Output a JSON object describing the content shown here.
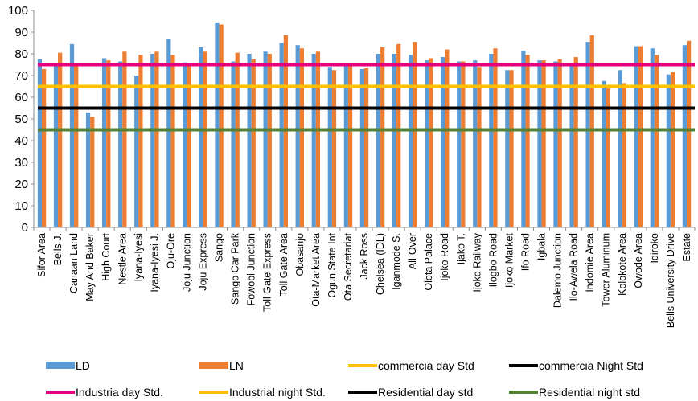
{
  "chart_data": {
    "type": "bar",
    "categories": [
      "Sifor Area",
      "Bells J.",
      "Canaan Land",
      "May And Baker",
      "High Court",
      "Nestle Area",
      "Iyana-Iyesi",
      "Iyana-Iyesi J.",
      "Oju-Ore",
      "Joju Junction",
      "Joju Express",
      "Sango",
      "Sango Car Park",
      "Fowobi Junction",
      "Toll Gate Express",
      "Toll Gate Area",
      "Obasanjo",
      "Ota-Market Area",
      "Ogun State Int",
      "Ota  Secretariat",
      "Jack Ross",
      "Chelsea (IDL)",
      "Iganmode S.",
      "All-Over",
      "Olota Palace",
      "Ijoko Road",
      "Ijako T.",
      "Ijoko Railway",
      "Ilogbo Road",
      "Ijoko Market",
      "Ifo Road",
      "Igbala",
      "Dalemo Junction",
      "Ilo-Awela Road",
      "Indomie Area",
      "Tower Aluminum",
      "Kolokote Area",
      "Owode Area",
      "Idiroko",
      "Bells University Drive",
      "Estate"
    ],
    "series": [
      {
        "name": "LD",
        "color": "#5B9BD5",
        "values": [
          77.5,
          75.5,
          84.5,
          53,
          78,
          76.5,
          70,
          80,
          87,
          76,
          83,
          94.5,
          76.5,
          80,
          81,
          85,
          84,
          80,
          74,
          75,
          73,
          80,
          80,
          79.5,
          77,
          78.5,
          76.5,
          77,
          80,
          72.5,
          81.5,
          77,
          76.5,
          75,
          85.5,
          67.5,
          72.5,
          83.5,
          82.5,
          70.5,
          84
        ]
      },
      {
        "name": "LN",
        "color": "#ED7D31",
        "values": [
          73,
          80.5,
          75.5,
          51,
          77,
          81,
          79.5,
          81,
          79.5,
          75.5,
          81,
          93.5,
          80.5,
          77.5,
          80,
          88.5,
          82.5,
          81,
          72.5,
          74.5,
          73.5,
          83,
          84.5,
          85.5,
          78,
          82,
          76.5,
          74,
          82.5,
          72.5,
          79.5,
          77,
          77.5,
          78.5,
          88.5,
          64,
          66.5,
          83.5,
          79.5,
          71.5,
          86
        ]
      }
    ],
    "reference_lines": [
      {
        "name": "commercia day Std",
        "value": 65,
        "color": "#FFC000"
      },
      {
        "name": "commercia Night Std",
        "value": 55,
        "color": "#000000"
      },
      {
        "name": "Industria day Std.",
        "value": 75,
        "color": "#E6007E"
      },
      {
        "name": "Industrial night Std.",
        "value": 65,
        "color": "#FFC000"
      },
      {
        "name": "Residential day std",
        "value": 55,
        "color": "#000000"
      },
      {
        "name": "Residential night std",
        "value": 45,
        "color": "#548235"
      }
    ],
    "ylim": [
      0,
      100
    ],
    "yticks": [
      0,
      10,
      20,
      30,
      40,
      50,
      60,
      70,
      80,
      90,
      100
    ],
    "grid": false,
    "legend_position": "bottom",
    "title": "",
    "xlabel": "",
    "ylabel": ""
  }
}
